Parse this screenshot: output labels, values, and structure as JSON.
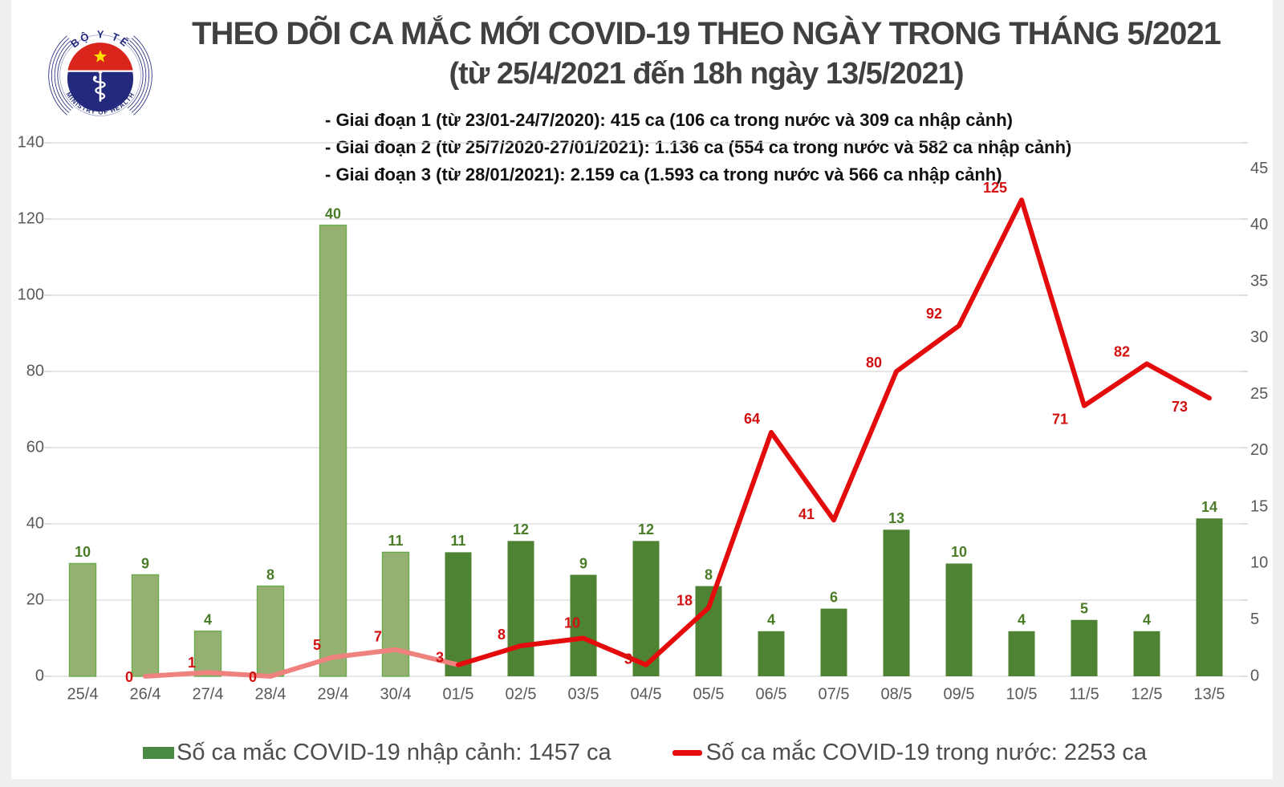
{
  "colors": {
    "page_bg": "#ffffff",
    "edge_band": "#efeef0",
    "title": "#404040",
    "notes": "#111111",
    "axis_text": "#595959",
    "grid": "#d9d9d9",
    "tick": "#c9c9c9",
    "bar_april": "#94b171",
    "bar_april_border": "#6aaa50",
    "bar_may": "#4e8333",
    "bar_label": "#4a7c28",
    "line_main": "#e30b0c",
    "line_faded": "#ef827f",
    "line_label": "#d21010",
    "legend_text": "#4d4d4d",
    "legend_bar_swatch": "#4a8a44",
    "logo_navy": "#232a7d",
    "logo_red": "#da251d",
    "logo_star": "#ffde00"
  },
  "logo": {
    "top_text": "BỘ Y TẾ",
    "bottom_text": "MINISTRY OF HEALTH"
  },
  "title": {
    "line1": "THEO DÕI CA MẮC MỚI COVID-19 THEO NGÀY TRONG THÁNG 5/2021",
    "line2": "(từ 25/4/2021 đến 18h ngày 13/5/2021)"
  },
  "notes": [
    "- Giai đoạn 1 (từ 23/01-24/7/2020): 415 ca (106 ca trong nước và 309 ca nhập cảnh)",
    "- Giai đoạn 2 (từ 25/7/2020-27/01/2021): 1.136 ca (554 ca trong nước và 582 ca nhập cảnh)",
    "- Giai đoạn 3 (từ 28/01/2021): 2.159 ca (1.593 ca trong nước và 566 ca nhập cảnh)"
  ],
  "chart_data": {
    "type": "combo",
    "categories": [
      "25/4",
      "26/4",
      "27/4",
      "28/4",
      "29/4",
      "30/4",
      "01/5",
      "02/5",
      "03/5",
      "04/5",
      "05/5",
      "06/5",
      "07/5",
      "08/5",
      "09/5",
      "10/5",
      "11/5",
      "12/5",
      "13/5"
    ],
    "series": [
      {
        "name": "Số ca mắc COVID-19 nhập cảnh: 1457 ca",
        "type": "bar",
        "axis": "right",
        "values": [
          10,
          9,
          4,
          8,
          40,
          11,
          11,
          12,
          9,
          12,
          8,
          4,
          6,
          13,
          10,
          4,
          5,
          4,
          14
        ],
        "april_count": 6
      },
      {
        "name": "Số ca mắc COVID-19 trong nước: 2253 ca",
        "type": "line",
        "axis": "left",
        "values": [
          null,
          0,
          1,
          0,
          5,
          7,
          3,
          8,
          10,
          3,
          18,
          64,
          41,
          80,
          92,
          125,
          71,
          82,
          73
        ],
        "faded_until_index": 6
      }
    ],
    "left_axis": {
      "min": 0,
      "max": 140,
      "step": 20,
      "ticks": [
        0,
        20,
        40,
        60,
        80,
        100,
        120,
        140
      ]
    },
    "right_axis": {
      "min": 0,
      "max": 45,
      "step": 5,
      "ticks": [
        0,
        5,
        10,
        15,
        20,
        25,
        30,
        35,
        40,
        45
      ]
    },
    "grid": true,
    "legend_position": "bottom"
  },
  "legend": {
    "items": [
      {
        "label": "Số ca mắc COVID-19 nhập cảnh: 1457 ca",
        "marker": "bar"
      },
      {
        "label": "Số ca mắc COVID-19 trong nước: 2253 ca",
        "marker": "line"
      }
    ]
  }
}
